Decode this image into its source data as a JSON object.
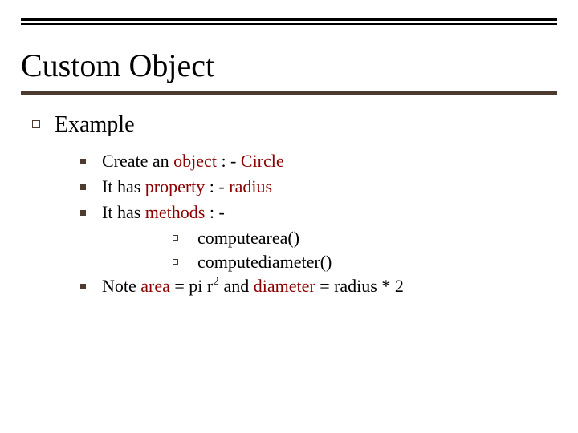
{
  "title": "Custom Object",
  "colors": {
    "text": "#000000",
    "accent": "#8b0000",
    "rule_dark": "#000000",
    "rule_brown": "#4e3b30",
    "bullet": "#4e3b30",
    "background": "#ffffff"
  },
  "typography": {
    "title_fontsize": 40,
    "level1_fontsize": 28,
    "level2_fontsize": 22,
    "level3_fontsize": 22,
    "font_family": "Times New Roman"
  },
  "level1": {
    "text": "Example"
  },
  "level2_items": [
    {
      "prefix": "Create an ",
      "accent1": "object",
      "mid": " : - ",
      "accent2": "Circle",
      "suffix": ""
    },
    {
      "prefix": "It has ",
      "accent1": "property",
      "mid": "   : - ",
      "accent2": "radius",
      "suffix": ""
    },
    {
      "prefix": "It has ",
      "accent1": "methods",
      "mid": "   : -",
      "accent2": "",
      "suffix": ""
    }
  ],
  "level3_items": [
    {
      "text": "computearea()"
    },
    {
      "text": "computediameter()"
    }
  ],
  "note": {
    "prefix": "Note  ",
    "accent1": "area",
    "mid1": " = pi r",
    "sup": "2",
    "mid2": " and ",
    "accent2": "diameter",
    "suffix": " = radius * 2"
  }
}
